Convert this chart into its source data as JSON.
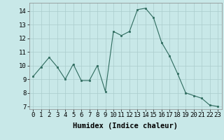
{
  "x": [
    0,
    1,
    2,
    3,
    4,
    5,
    6,
    7,
    8,
    9,
    10,
    11,
    12,
    13,
    14,
    15,
    16,
    17,
    18,
    19,
    20,
    21,
    22,
    23
  ],
  "y": [
    9.2,
    9.9,
    10.6,
    9.9,
    9.0,
    10.1,
    8.9,
    8.9,
    10.0,
    8.1,
    12.5,
    12.2,
    12.5,
    14.1,
    14.2,
    13.5,
    11.7,
    10.7,
    9.4,
    8.0,
    7.8,
    7.6,
    7.1,
    7.0
  ],
  "line_color": "#2e6b5e",
  "marker_color": "#2e6b5e",
  "bg_color": "#c8e8e8",
  "grid_color": "#aacccc",
  "xlabel": "Humidex (Indice chaleur)",
  "ylim": [
    6.8,
    14.6
  ],
  "xlim": [
    -0.5,
    23.5
  ],
  "yticks": [
    7,
    8,
    9,
    10,
    11,
    12,
    13,
    14
  ],
  "xticks": [
    0,
    1,
    2,
    3,
    4,
    5,
    6,
    7,
    8,
    9,
    10,
    11,
    12,
    13,
    14,
    15,
    16,
    17,
    18,
    19,
    20,
    21,
    22,
    23
  ],
  "tick_fontsize": 6.5,
  "xlabel_fontsize": 7.5
}
